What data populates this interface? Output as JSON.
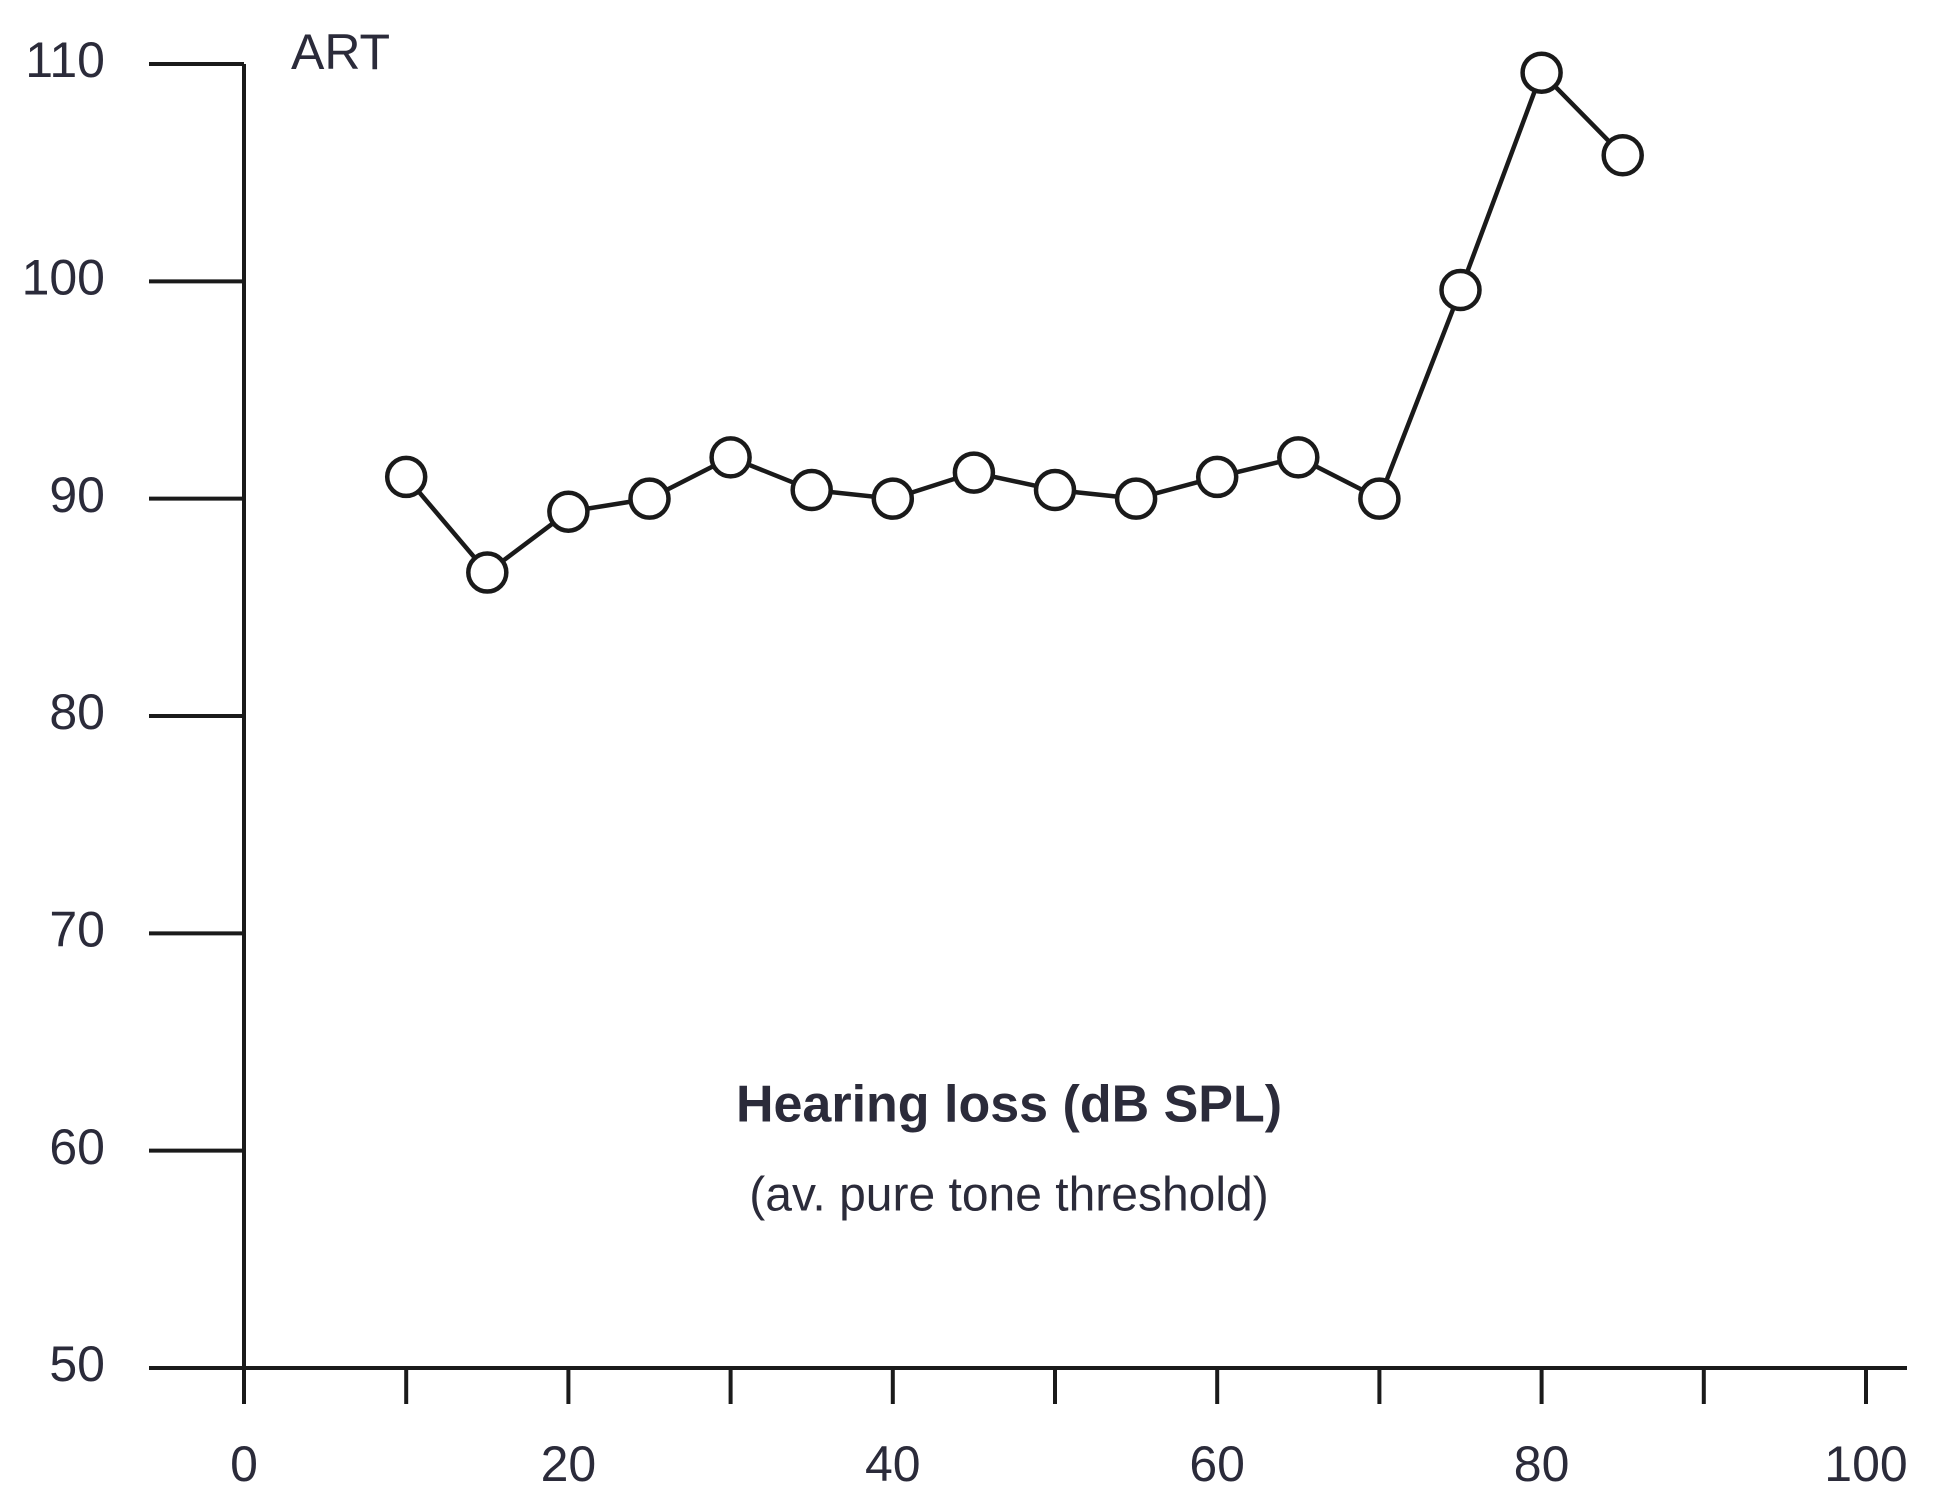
{
  "chart_data": {
    "type": "line",
    "ylabel": "ART",
    "xlabel": "Hearing loss (dB SPL)",
    "xlabel_sub": "(av. pure tone threshold)",
    "x": [
      10,
      15,
      20,
      25,
      30,
      35,
      40,
      45,
      50,
      55,
      60,
      65,
      70,
      75,
      80,
      85
    ],
    "series": [
      {
        "color": "#1a1a1a",
        "values": [
          91,
          86.6,
          89.4,
          90,
          91.9,
          90.4,
          90,
          91.2,
          90.4,
          90,
          91,
          91.9,
          90,
          99.6,
          109.6,
          105.8
        ]
      }
    ],
    "xlim": [
      0,
      100
    ],
    "xticks": [
      0,
      20,
      40,
      60,
      80,
      100
    ],
    "xminor_ticks": [
      10,
      30,
      50,
      70,
      90
    ],
    "ylim": [
      50,
      110
    ],
    "yticks": [
      50,
      60,
      70,
      80,
      90,
      100,
      110
    ],
    "grid": false
  }
}
